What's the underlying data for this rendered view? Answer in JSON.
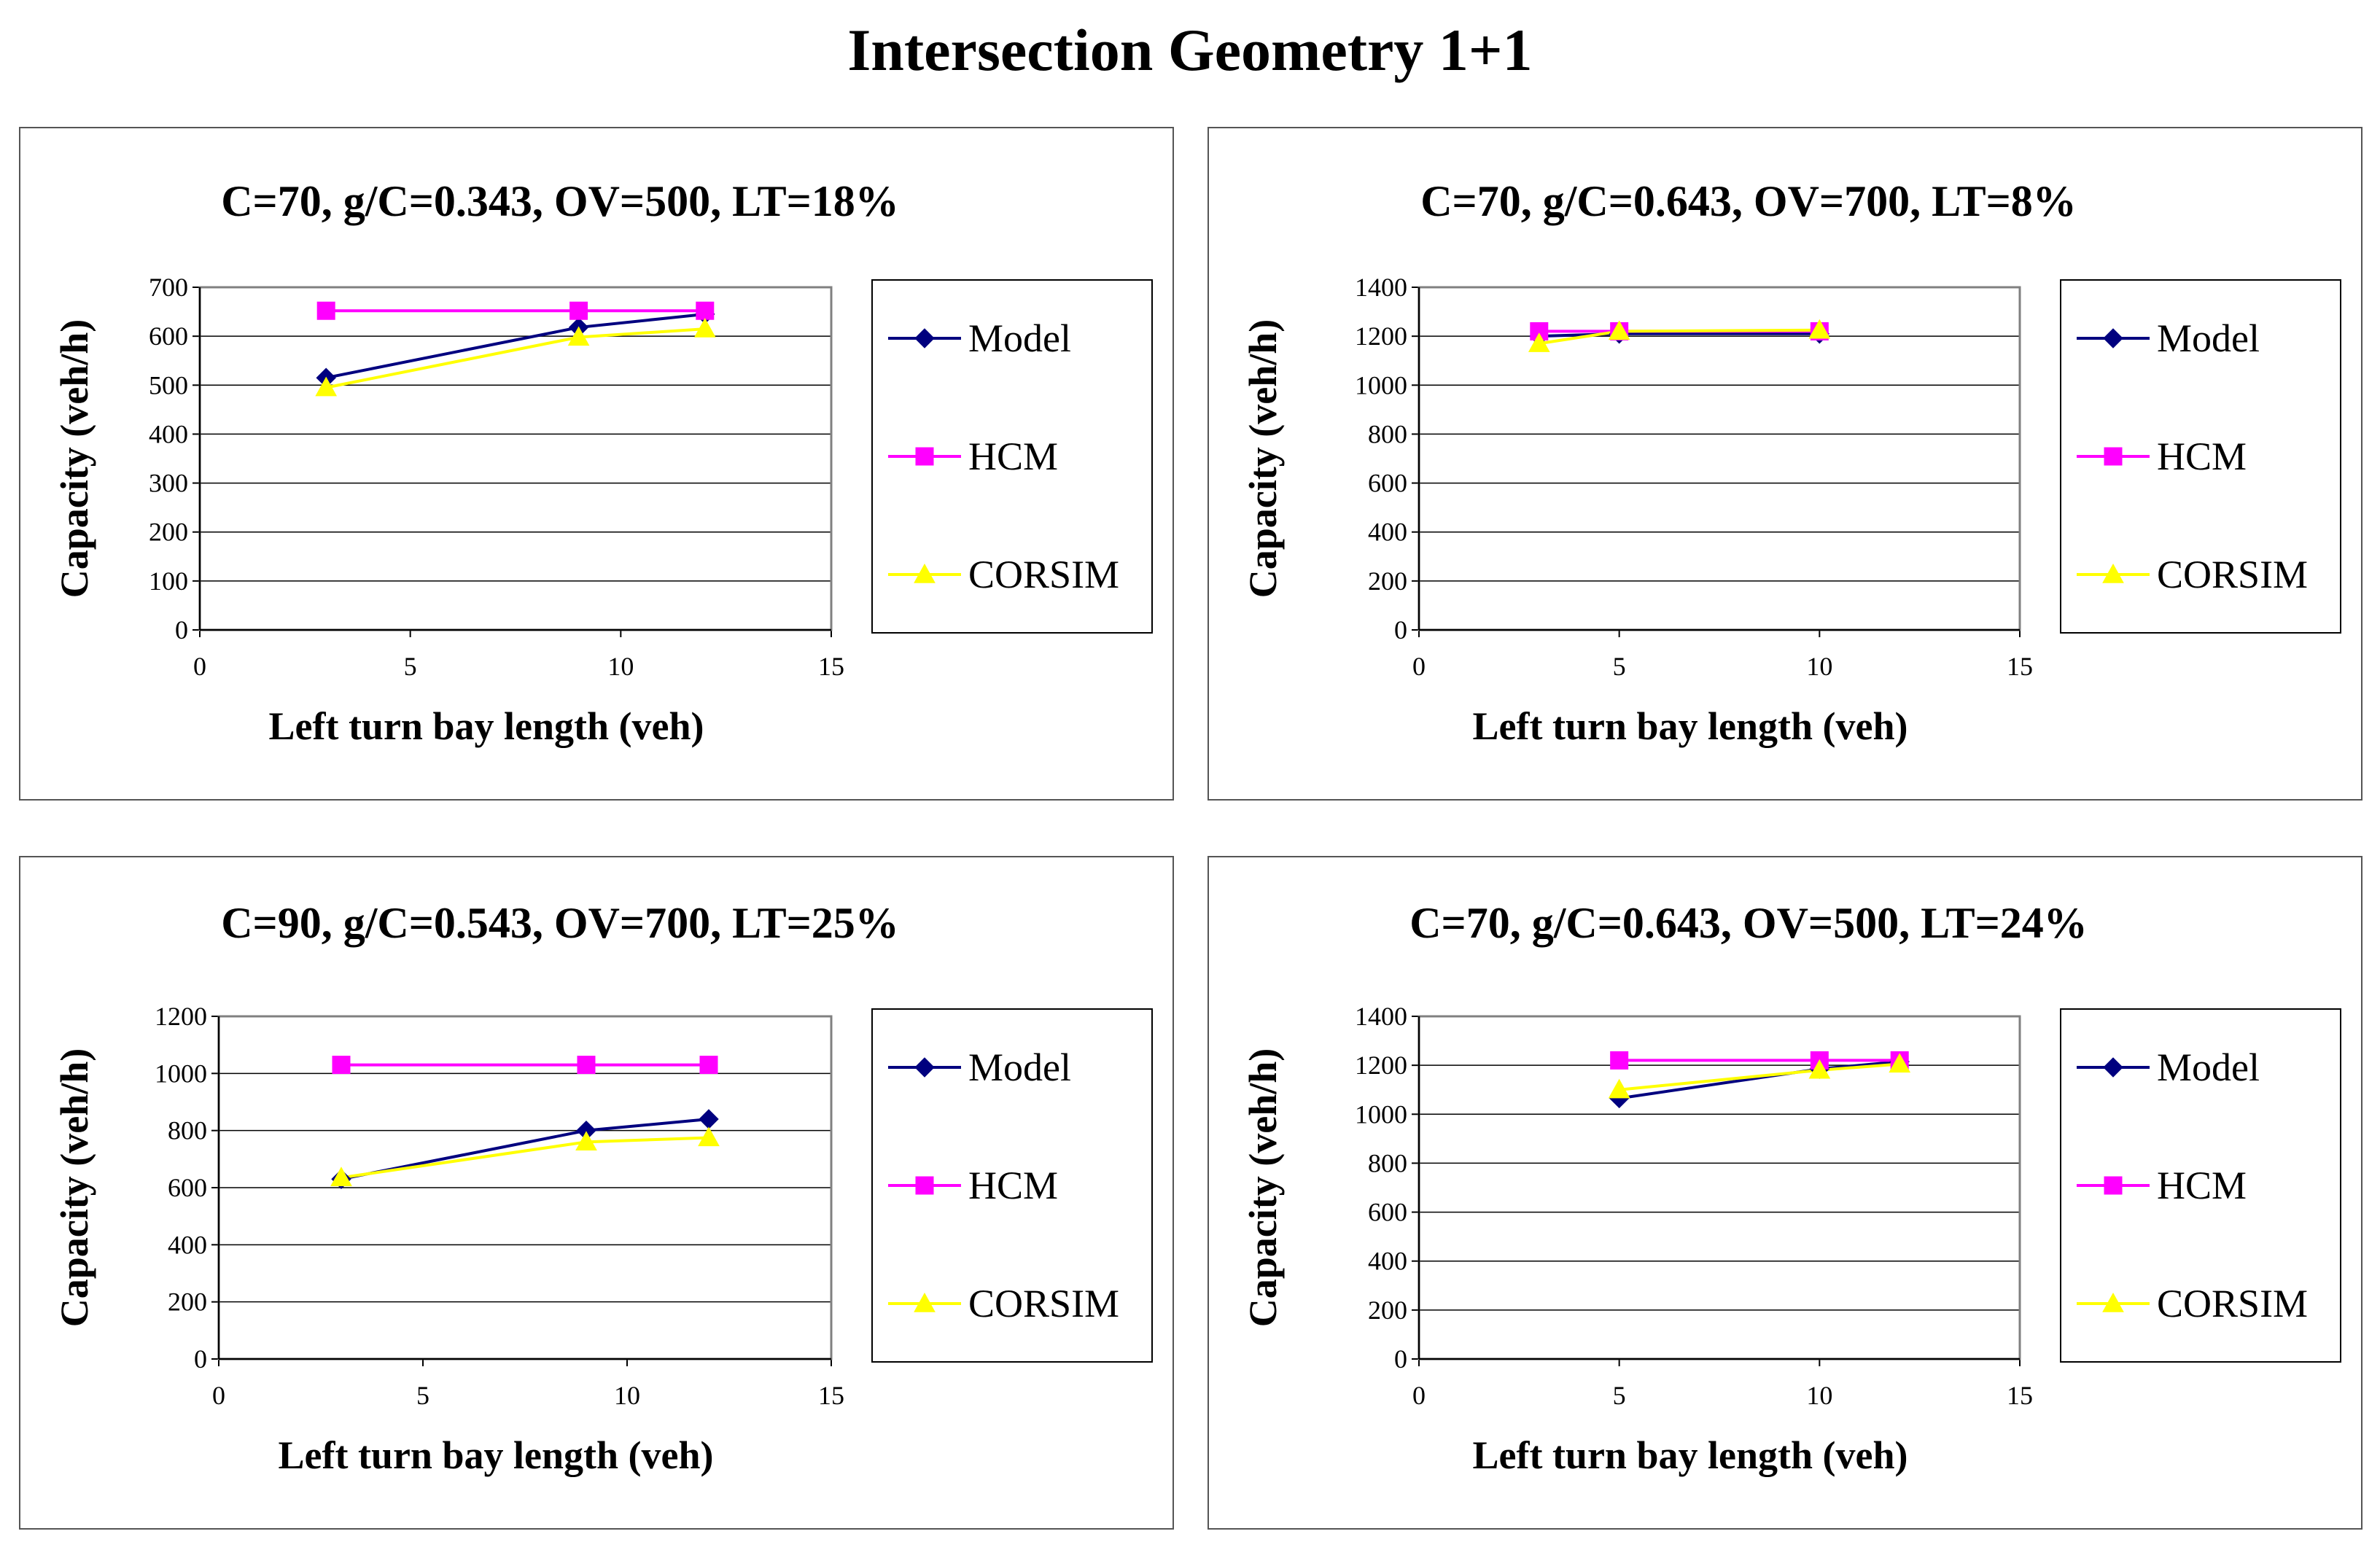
{
  "page_title": "Intersection Geometry 1+1",
  "colors": {
    "model": "#00007F",
    "hcm": "#FF00FF",
    "corsim": "#FFFF00",
    "grid": "#000000"
  },
  "chart_data": [
    {
      "type": "line",
      "title": "C=70, g/C=0.343, OV=500, LT=18%",
      "xlabel": "Left turn bay length (veh)",
      "ylabel": "Capacity (veh/h)",
      "xlim": [
        0,
        15
      ],
      "xticks": [
        0,
        5,
        10,
        15
      ],
      "ylim": [
        0,
        700
      ],
      "yticks": [
        0,
        100,
        200,
        300,
        400,
        500,
        600,
        700
      ],
      "series": [
        {
          "name": "Model",
          "marker": "diamond",
          "x": [
            3,
            9,
            12
          ],
          "y": [
            515,
            618,
            645
          ]
        },
        {
          "name": "HCM",
          "marker": "square",
          "x": [
            3,
            9,
            12
          ],
          "y": [
            652,
            652,
            652
          ]
        },
        {
          "name": "CORSIM",
          "marker": "triangle",
          "x": [
            3,
            9,
            12
          ],
          "y": [
            495,
            598,
            615
          ]
        }
      ]
    },
    {
      "type": "line",
      "title": "C=70, g/C=0.643, OV=700, LT=8%",
      "xlabel": "Left turn bay length (veh)",
      "ylabel": "Capacity (veh/h)",
      "xlim": [
        0,
        15
      ],
      "xticks": [
        0,
        5,
        10,
        15
      ],
      "ylim": [
        0,
        1400
      ],
      "yticks": [
        0,
        200,
        400,
        600,
        800,
        1000,
        1200,
        1400
      ],
      "series": [
        {
          "name": "Model",
          "marker": "diamond",
          "x": [
            3,
            5,
            10
          ],
          "y": [
            1200,
            1210,
            1210
          ]
        },
        {
          "name": "HCM",
          "marker": "square",
          "x": [
            3,
            5,
            10
          ],
          "y": [
            1220,
            1220,
            1220
          ]
        },
        {
          "name": "CORSIM",
          "marker": "triangle",
          "x": [
            3,
            5,
            10
          ],
          "y": [
            1170,
            1220,
            1225
          ]
        }
      ]
    },
    {
      "type": "line",
      "title": "C=90, g/C=0.543, OV=700, LT=25%",
      "xlabel": "Left turn bay length (veh)",
      "ylabel": "Capacity (veh/h)",
      "xlim": [
        0,
        15
      ],
      "xticks": [
        0,
        5,
        10,
        15
      ],
      "ylim": [
        0,
        1200
      ],
      "yticks": [
        0,
        200,
        400,
        600,
        800,
        1000,
        1200
      ],
      "series": [
        {
          "name": "Model",
          "marker": "diamond",
          "x": [
            3,
            9,
            12
          ],
          "y": [
            630,
            800,
            840
          ]
        },
        {
          "name": "HCM",
          "marker": "square",
          "x": [
            3,
            9,
            12
          ],
          "y": [
            1030,
            1030,
            1030
          ]
        },
        {
          "name": "CORSIM",
          "marker": "triangle",
          "x": [
            3,
            9,
            12
          ],
          "y": [
            635,
            760,
            775
          ]
        }
      ]
    },
    {
      "type": "line",
      "title": "C=70, g/C=0.643, OV=500, LT=24%",
      "xlabel": "Left turn bay length (veh)",
      "ylabel": "Capacity (veh/h)",
      "xlim": [
        0,
        15
      ],
      "xticks": [
        0,
        5,
        10,
        15
      ],
      "ylim": [
        0,
        1400
      ],
      "yticks": [
        0,
        200,
        400,
        600,
        800,
        1000,
        1200,
        1400
      ],
      "series": [
        {
          "name": "Model",
          "marker": "diamond",
          "x": [
            5,
            10,
            12
          ],
          "y": [
            1065,
            1185,
            1215
          ]
        },
        {
          "name": "HCM",
          "marker": "square",
          "x": [
            5,
            10,
            12
          ],
          "y": [
            1220,
            1220,
            1220
          ]
        },
        {
          "name": "CORSIM",
          "marker": "triangle",
          "x": [
            5,
            10,
            12
          ],
          "y": [
            1100,
            1180,
            1205
          ]
        }
      ]
    }
  ]
}
